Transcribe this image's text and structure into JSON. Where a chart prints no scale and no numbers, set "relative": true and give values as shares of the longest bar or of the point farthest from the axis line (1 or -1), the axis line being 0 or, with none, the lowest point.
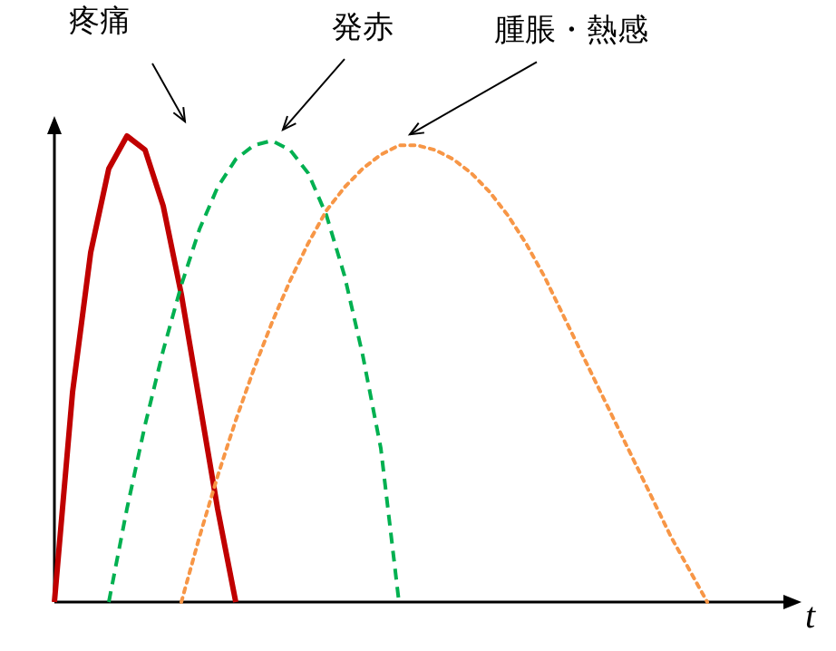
{
  "chart_data": {
    "type": "line",
    "relative": true,
    "xlabel": "t",
    "categories": [
      null,
      null,
      null,
      null,
      null,
      null,
      null,
      null,
      null,
      null,
      null,
      null,
      null,
      null,
      null,
      null,
      null,
      null,
      null,
      null,
      null,
      null,
      null,
      null,
      null,
      null,
      null,
      null,
      null,
      null,
      null,
      null,
      null,
      null,
      null,
      null,
      null,
      null,
      null,
      null,
      null
    ],
    "series": [
      {
        "name": "疼痛",
        "color": "#c00000",
        "line_style": "solid",
        "values": [
          0,
          0.45,
          0.75,
          0.93,
          1.0,
          0.97,
          0.85,
          0.66,
          0.43,
          0.2,
          0,
          null,
          null,
          null,
          null,
          null,
          null,
          null,
          null,
          null,
          null,
          null,
          null,
          null,
          null,
          null,
          null,
          null,
          null,
          null,
          null,
          null,
          null,
          null,
          null,
          null,
          null,
          null,
          null,
          null,
          null
        ]
      },
      {
        "name": "発赤",
        "color": "#00b050",
        "line_style": "dashed",
        "values": [
          null,
          null,
          null,
          0,
          0.2,
          0.38,
          0.54,
          0.68,
          0.8,
          0.89,
          0.95,
          0.98,
          0.99,
          0.97,
          0.92,
          0.83,
          0.7,
          0.53,
          0.33,
          0,
          null,
          null,
          null,
          null,
          null,
          null,
          null,
          null,
          null,
          null,
          null,
          null,
          null,
          null,
          null,
          null,
          null,
          null,
          null,
          null,
          null
        ]
      },
      {
        "name": "腫脹・熱感",
        "color": "#f79646",
        "line_style": "dotted",
        "values": [
          null,
          null,
          null,
          null,
          null,
          null,
          null,
          0,
          0.14,
          0.27,
          0.39,
          0.5,
          0.6,
          0.69,
          0.77,
          0.84,
          0.89,
          0.93,
          0.96,
          0.98,
          0.98,
          0.97,
          0.95,
          0.92,
          0.88,
          0.83,
          0.77,
          0.7,
          0.62,
          0.54,
          0.46,
          0.38,
          0.3,
          0.22,
          0.14,
          0.07,
          0,
          null,
          null,
          null,
          null
        ]
      }
    ]
  }
}
